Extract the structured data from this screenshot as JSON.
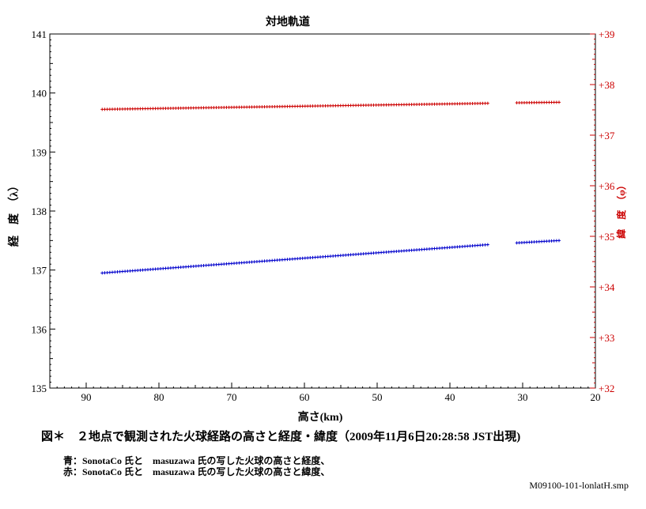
{
  "chart_data": {
    "type": "scatter",
    "title": "対地軌道",
    "xlabel": "高さ(km)",
    "ylabel_left": "経　度　（λ）",
    "ylabel_right": "緯　度　（φ）",
    "x_reversed": true,
    "xlim": [
      95,
      20
    ],
    "x_ticks": [
      90,
      80,
      70,
      60,
      50,
      40,
      30,
      20
    ],
    "x_tick_labels": [
      "90",
      "80",
      "70",
      "60",
      "50",
      "40",
      "30",
      "20"
    ],
    "ylim_left": [
      135,
      141
    ],
    "y_ticks_left": [
      135,
      136,
      137,
      138,
      139,
      140,
      141
    ],
    "y_tick_labels_left": [
      "135",
      "136",
      "137",
      "138",
      "139",
      "140",
      "141"
    ],
    "ylim_right": [
      32,
      39
    ],
    "y_ticks_right": [
      32,
      33,
      34,
      35,
      36,
      37,
      38,
      39
    ],
    "y_tick_labels_right": [
      "+32",
      "+33",
      "+34",
      "+35",
      "+36",
      "+37",
      "+38",
      "+39"
    ],
    "grid": false,
    "series": [
      {
        "color": "#0000cc",
        "axis": "left",
        "segments": [
          {
            "x_start": 87.8,
            "x_end": 34.8,
            "y_start": 136.95,
            "y_end": 137.43
          },
          {
            "x_start": 30.8,
            "x_end": 25.0,
            "y_start": 137.46,
            "y_end": 137.5
          }
        ]
      },
      {
        "color": "#cc0000",
        "axis": "right",
        "segments": [
          {
            "x_start": 87.8,
            "x_end": 34.8,
            "y_start": 37.51,
            "y_end": 37.63
          },
          {
            "x_start": 30.8,
            "x_end": 25.0,
            "y_start": 37.64,
            "y_end": 37.65
          }
        ]
      }
    ]
  },
  "caption": "図＊　２地点で観測された火球経路の高さと経度・緯度（2009年11月6日20:28:58 JST出現)",
  "notes": [
    "青：SonotaCo 氏と　masuzawa 氏の写した火球の高さと経度、",
    "赤：SonotaCo 氏と　masuzawa 氏の写した火球の高さと緯度、"
  ],
  "filename": "M09100-101-lonlatH.smp"
}
